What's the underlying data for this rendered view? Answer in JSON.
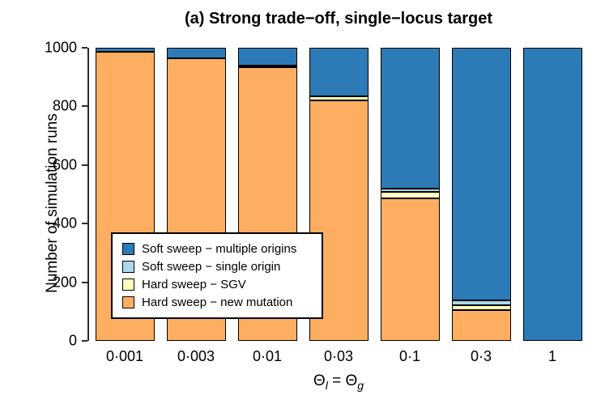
{
  "chart_data": {
    "type": "bar",
    "stacked": true,
    "title": "(a) Strong trade−off, single−locus target",
    "ylabel": "Number of simulation runs",
    "xlabel": "Θl = Θg",
    "xlabel_parts": {
      "theta_left": "Θ",
      "sub_left": "l",
      "equals": " = ",
      "theta_right": "Θ",
      "sub_right": "g"
    },
    "ylim": [
      0,
      1000
    ],
    "yticks": [
      0,
      200,
      400,
      600,
      800,
      1000
    ],
    "grid": false,
    "categories": [
      "0·001",
      "0·003",
      "0·01",
      "0·03",
      "0·1",
      "0·3",
      "1"
    ],
    "series": [
      {
        "name": "Hard sweep − new mutation",
        "color": "#FDAE61",
        "values": [
          985,
          965,
          935,
          820,
          487,
          105,
          0
        ]
      },
      {
        "name": "Hard sweep − SGV",
        "color": "#FFFFBF",
        "values": [
          0,
          0,
          5,
          15,
          20,
          17,
          0
        ]
      },
      {
        "name": "Soft sweep − single origin",
        "color": "#ABD9E9",
        "values": [
          0,
          0,
          0,
          0,
          12,
          16,
          0
        ]
      },
      {
        "name": "Soft sweep − multiple origins",
        "color": "#2C7BB6",
        "values": [
          15,
          35,
          60,
          165,
          481,
          862,
          1000
        ]
      }
    ],
    "legend": {
      "position": "inside-lower-left",
      "entries": [
        "Soft sweep − multiple origins",
        "Soft sweep − single origin",
        "Hard sweep − SGV",
        "Hard sweep − new mutation"
      ]
    }
  }
}
